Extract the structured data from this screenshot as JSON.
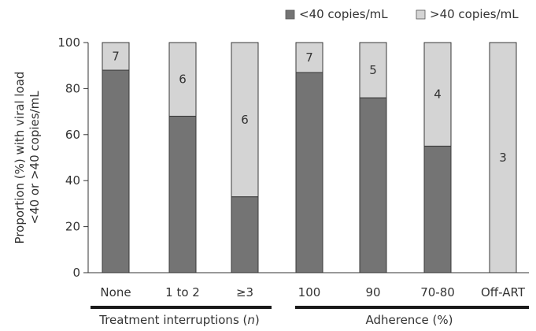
{
  "chart_data": {
    "type": "bar",
    "stacked": true,
    "categories": [
      "None",
      "1 to 2",
      "≥3",
      "100",
      "90",
      "70-80",
      "Off-ART"
    ],
    "category_groups": [
      {
        "label_parts": [
          "Treatment interruptions (",
          "n",
          ")"
        ],
        "categories": [
          "None",
          "1 to 2",
          "≥3"
        ]
      },
      {
        "label_parts": [
          "Adherence (%)"
        ],
        "categories": [
          "100",
          "90",
          "70-80",
          "Off-ART"
        ]
      }
    ],
    "series": [
      {
        "name": "<40 copies/mL",
        "color": "#747474",
        "values": [
          88,
          68,
          33,
          87,
          76,
          55,
          0
        ]
      },
      {
        "name": ">40 copies/mL",
        "color": "#d4d4d4",
        "values": [
          12,
          32,
          67,
          13,
          24,
          45,
          100
        ]
      }
    ],
    "segment_labels": [
      "7",
      "6",
      "6",
      "7",
      "5",
      "4",
      "3"
    ],
    "ylabel_lines": [
      "Proportion (%) with viral load",
      "<40 or >40 copies/mL"
    ],
    "ylim": [
      0,
      100
    ],
    "yticks": [
      0,
      20,
      40,
      60,
      80,
      100
    ],
    "legend_position": "top-right",
    "grid": false
  }
}
